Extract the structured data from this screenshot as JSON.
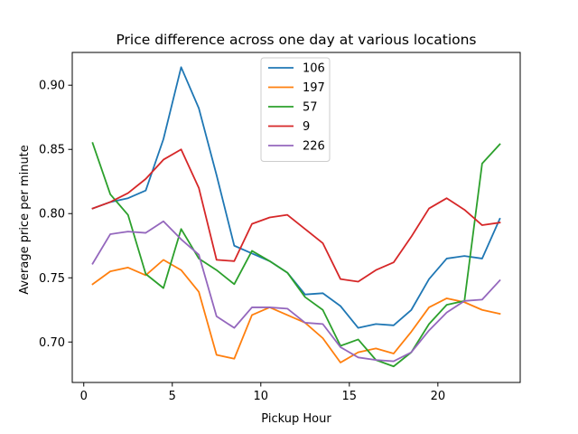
{
  "chart_data": {
    "type": "line",
    "title": "Price difference across one day at various locations",
    "xlabel": "Pickup Hour",
    "ylabel": "Average price per minute",
    "xlim": [
      -0.65,
      24.65
    ],
    "ylim": [
      0.6685,
      0.9255
    ],
    "xticks": [
      0,
      5,
      10,
      15,
      20
    ],
    "yticks": [
      0.7,
      0.75,
      0.8,
      0.85,
      0.9
    ],
    "xtick_labels": [
      "0",
      "5",
      "10",
      "15",
      "20"
    ],
    "ytick_labels": [
      "0.70",
      "0.75",
      "0.80",
      "0.85",
      "0.90"
    ],
    "grid": false,
    "legend_position": "upper-center",
    "x": [
      0.5,
      1.5,
      2.5,
      3.5,
      4.5,
      5.5,
      6.5,
      7.5,
      8.5,
      9.5,
      10.5,
      11.5,
      12.5,
      13.5,
      14.5,
      15.5,
      16.5,
      17.5,
      18.5,
      19.5,
      20.5,
      21.5,
      22.5,
      23.5
    ],
    "series": [
      {
        "name": "106",
        "color": "#1f77b4",
        "values": [
          0.804,
          0.809,
          0.812,
          0.818,
          0.858,
          0.914,
          0.882,
          0.83,
          0.775,
          0.769,
          0.763,
          0.754,
          0.737,
          0.738,
          0.728,
          0.711,
          0.714,
          0.713,
          0.725,
          0.749,
          0.765,
          0.767,
          0.765,
          0.796
        ]
      },
      {
        "name": "197",
        "color": "#ff7f0e",
        "values": [
          0.745,
          0.755,
          0.758,
          0.752,
          0.764,
          0.756,
          0.739,
          0.69,
          0.687,
          0.721,
          0.727,
          0.721,
          0.715,
          0.703,
          0.684,
          0.692,
          0.695,
          0.691,
          0.708,
          0.727,
          0.734,
          0.731,
          0.725,
          0.722
        ]
      },
      {
        "name": "57",
        "color": "#2ca02c",
        "values": [
          0.855,
          0.815,
          0.799,
          0.753,
          0.742,
          0.788,
          0.765,
          0.756,
          0.745,
          0.771,
          0.763,
          0.754,
          0.735,
          0.725,
          0.697,
          0.702,
          0.686,
          0.681,
          0.692,
          0.714,
          0.729,
          0.732,
          0.839,
          0.854
        ]
      },
      {
        "name": "9",
        "color": "#d62728",
        "values": [
          0.804,
          0.809,
          0.816,
          0.827,
          0.842,
          0.85,
          0.82,
          0.764,
          0.763,
          0.792,
          0.797,
          0.799,
          0.788,
          0.777,
          0.749,
          0.747,
          0.756,
          0.762,
          0.782,
          0.804,
          0.812,
          0.803,
          0.791,
          0.793
        ]
      },
      {
        "name": "226",
        "color": "#9467bd",
        "values": [
          0.761,
          0.784,
          0.786,
          0.785,
          0.794,
          0.78,
          0.768,
          0.72,
          0.711,
          0.727,
          0.727,
          0.726,
          0.715,
          0.714,
          0.696,
          0.688,
          0.686,
          0.685,
          0.692,
          0.709,
          0.723,
          0.732,
          0.733,
          0.748
        ]
      }
    ]
  }
}
